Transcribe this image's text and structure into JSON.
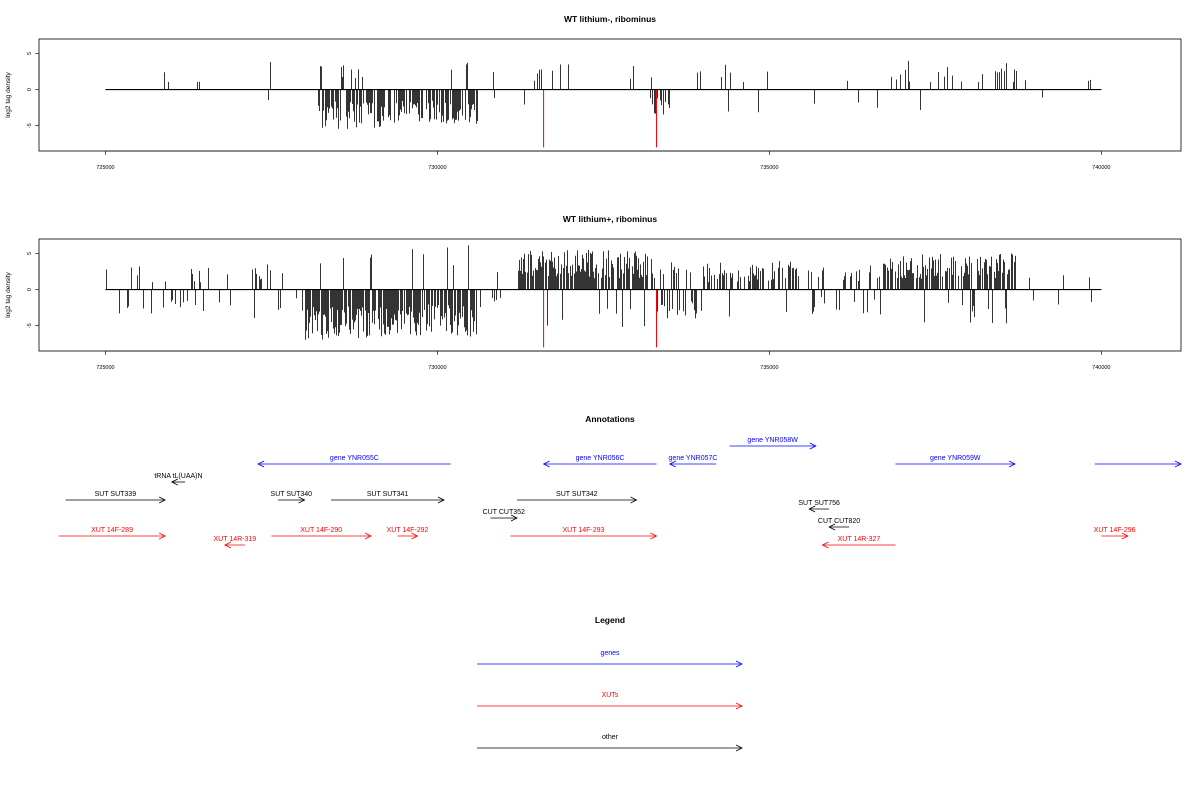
{
  "chart_data": [
    {
      "type": "bar",
      "title": "WT lithium-, ribominus",
      "xlabel": "",
      "ylabel": "log2 tag density",
      "xlim": [
        724000,
        741200
      ],
      "ylim": [
        -8.5,
        7
      ],
      "xticks": [
        725000,
        730000,
        735000,
        740000
      ],
      "xtick_labels": [
        "725000",
        "730000",
        "735000",
        "740000"
      ],
      "yticks": [
        -5,
        0,
        5
      ],
      "ytick_labels": [
        "-5",
        "0",
        "5"
      ],
      "baseline": {
        "from": 725000,
        "to": 740000
      },
      "highlight_color": "#ff0000",
      "highlight_marks": [
        {
          "x": 731600,
          "y": -8
        },
        {
          "x": 733300,
          "y": -8
        }
      ],
      "segments": [
        {
          "from": 725000,
          "to": 726000,
          "density": 0.05,
          "sign": 1,
          "min": 1,
          "max": 3.5
        },
        {
          "from": 726000,
          "to": 727400,
          "density": 0.03,
          "sign": 1,
          "min": 1,
          "max": 2.5
        },
        {
          "from": 727400,
          "to": 728200,
          "density": 0.05,
          "sign": 0,
          "min": 1,
          "max": 4
        },
        {
          "from": 728200,
          "to": 729200,
          "density": 0.9,
          "sign": -1,
          "min": 1.5,
          "max": 5.5
        },
        {
          "from": 729200,
          "to": 730600,
          "density": 0.7,
          "sign": -1,
          "min": 1.5,
          "max": 5
        },
        {
          "from": 730600,
          "to": 731500,
          "density": 0.06,
          "sign": 0,
          "min": 1,
          "max": 3
        },
        {
          "from": 731500,
          "to": 733200,
          "density": 0.06,
          "sign": 1,
          "min": 1,
          "max": 3.5
        },
        {
          "from": 733200,
          "to": 733500,
          "density": 0.5,
          "sign": -1,
          "min": 1,
          "max": 3.5
        },
        {
          "from": 733500,
          "to": 735400,
          "density": 0.07,
          "sign": 1,
          "min": 1,
          "max": 3.5
        },
        {
          "from": 735400,
          "to": 736800,
          "density": 0.05,
          "sign": -1,
          "min": 1,
          "max": 4
        },
        {
          "from": 736800,
          "to": 738800,
          "density": 0.13,
          "sign": 1,
          "min": 1,
          "max": 4
        },
        {
          "from": 738800,
          "to": 740000,
          "density": 0.02,
          "sign": 1,
          "min": 1,
          "max": 1.5
        }
      ]
    },
    {
      "type": "bar",
      "title": "WT lithium+, ribominus",
      "xlabel": "",
      "ylabel": "log2 tag density",
      "xlim": [
        724000,
        741200
      ],
      "ylim": [
        -8.5,
        7
      ],
      "xticks": [
        725000,
        730000,
        735000,
        740000
      ],
      "xtick_labels": [
        "725000",
        "730000",
        "735000",
        "740000"
      ],
      "yticks": [
        -5,
        0,
        5
      ],
      "ytick_labels": [
        "-5",
        "0",
        "5"
      ],
      "baseline": {
        "from": 725000,
        "to": 740000
      },
      "highlight_color": "#ff0000",
      "highlight_marks": [
        {
          "x": 731600,
          "y": -8
        },
        {
          "x": 733300,
          "y": -8
        }
      ],
      "segments": [
        {
          "from": 725000,
          "to": 726000,
          "density": 0.25,
          "sign": 0,
          "min": 1,
          "max": 3.5
        },
        {
          "from": 726000,
          "to": 727000,
          "density": 0.18,
          "sign": 0,
          "min": 1,
          "max": 3
        },
        {
          "from": 727000,
          "to": 728000,
          "density": 0.3,
          "sign": 0,
          "min": 1,
          "max": 4
        },
        {
          "from": 728000,
          "to": 729000,
          "density": 0.95,
          "sign": -1,
          "min": 2,
          "max": 7
        },
        {
          "from": 729000,
          "to": 730600,
          "density": 0.85,
          "sign": -1,
          "min": 2,
          "max": 6.5
        },
        {
          "from": 730600,
          "to": 731200,
          "density": 0.2,
          "sign": 0,
          "min": 1,
          "max": 3
        },
        {
          "from": 731200,
          "to": 733300,
          "density": 0.85,
          "sign": 1,
          "min": 1.5,
          "max": 5.5
        },
        {
          "from": 733300,
          "to": 734000,
          "density": 0.6,
          "sign": 0,
          "min": 1.5,
          "max": 4
        },
        {
          "from": 734000,
          "to": 735500,
          "density": 0.55,
          "sign": 1,
          "min": 1,
          "max": 4
        },
        {
          "from": 735500,
          "to": 736700,
          "density": 0.3,
          "sign": 0,
          "min": 1,
          "max": 3.5
        },
        {
          "from": 736700,
          "to": 738700,
          "density": 0.85,
          "sign": 1,
          "min": 1.5,
          "max": 5
        },
        {
          "from": 738700,
          "to": 740000,
          "density": 0.08,
          "sign": 0,
          "min": 1,
          "max": 2.5
        }
      ]
    }
  ],
  "annotations": {
    "title": "Annotations",
    "items": [
      {
        "label": "gene YNR055C",
        "start": 730200,
        "end": 727300,
        "row": 0,
        "color": "#0000ff"
      },
      {
        "label": "gene YNR056C",
        "start": 733300,
        "end": 731600,
        "row": 0,
        "color": "#0000ff"
      },
      {
        "label": "gene YNR057C",
        "start": 734200,
        "end": 733500,
        "row": 0,
        "color": "#0000ff"
      },
      {
        "label": "gene YNR058W",
        "start": 734400,
        "end": 735700,
        "row": -1,
        "color": "#0000ff"
      },
      {
        "label": "gene YNR059W",
        "start": 736900,
        "end": 738700,
        "row": 0,
        "color": "#0000ff"
      },
      {
        "label": "",
        "start": 739900,
        "end": 741200,
        "row": 0,
        "color": "#0000ff"
      },
      {
        "label": "tRNA tL(UAA)N",
        "start": 726200,
        "end": 726000,
        "row": 1,
        "color": "#000000"
      },
      {
        "label": "SUT SUT339",
        "start": 724400,
        "end": 725900,
        "row": 2,
        "color": "#000000"
      },
      {
        "label": "SUT SUT340",
        "start": 727600,
        "end": 728000,
        "row": 2,
        "color": "#000000"
      },
      {
        "label": "SUT SUT341",
        "start": 728400,
        "end": 730100,
        "row": 2,
        "color": "#000000"
      },
      {
        "label": "SUT SUT342",
        "start": 731200,
        "end": 733000,
        "row": 2,
        "color": "#000000"
      },
      {
        "label": "SUT SUT756",
        "start": 735900,
        "end": 735600,
        "row": 2.5,
        "color": "#000000"
      },
      {
        "label": "CUT CUT352",
        "start": 730800,
        "end": 731200,
        "row": 3,
        "color": "#000000"
      },
      {
        "label": "CUT CUT820",
        "start": 736200,
        "end": 735900,
        "row": 3.5,
        "color": "#000000"
      },
      {
        "label": "XUT 14F-289",
        "start": 724300,
        "end": 725900,
        "row": 4,
        "color": "#ff0000"
      },
      {
        "label": "XUT 14R-319",
        "start": 727100,
        "end": 726800,
        "row": 4.5,
        "color": "#ff0000"
      },
      {
        "label": "XUT 14F-290",
        "start": 727500,
        "end": 729000,
        "row": 4,
        "color": "#ff0000"
      },
      {
        "label": "XUT 14F-292",
        "start": 729400,
        "end": 729700,
        "row": 4,
        "color": "#ff0000"
      },
      {
        "label": "XUT 14F-293",
        "start": 731100,
        "end": 733300,
        "row": 4,
        "color": "#ff0000"
      },
      {
        "label": "XUT 14R-327",
        "start": 736900,
        "end": 735800,
        "row": 4.5,
        "color": "#ff0000"
      },
      {
        "label": "XUT 14F-296",
        "start": 740000,
        "end": 740400,
        "row": 4,
        "color": "#ff0000"
      }
    ]
  },
  "legend": {
    "title": "Legend",
    "items": [
      {
        "label": "genes",
        "color": "#0000ff"
      },
      {
        "label": "XUTs",
        "color": "#ff0000"
      },
      {
        "label": "other",
        "color": "#000000"
      }
    ]
  }
}
